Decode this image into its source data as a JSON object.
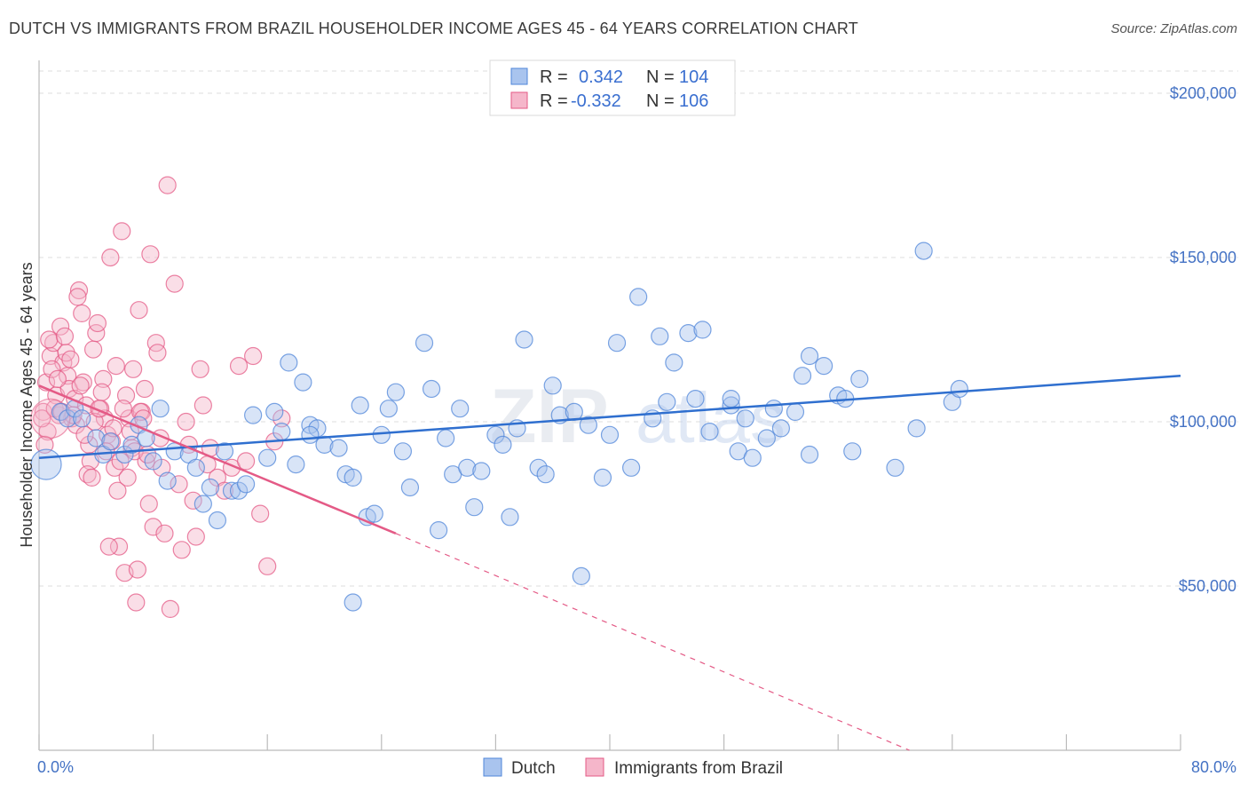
{
  "title": "DUTCH VS IMMIGRANTS FROM BRAZIL HOUSEHOLDER INCOME AGES 45 - 64 YEARS CORRELATION CHART",
  "source": "Source: ZipAtlas.com",
  "watermark": {
    "zip": "ZIP",
    "atlas": "atlas"
  },
  "legend": {
    "rows": [
      {
        "r_label": "R =",
        "r_value": "0.342",
        "n_label": "N =",
        "n_value": "104",
        "color": "#a9c4ee"
      },
      {
        "r_label": "R =",
        "r_value": "-0.332",
        "n_label": "N =",
        "n_value": "106",
        "color": "#f5b6ca"
      }
    ]
  },
  "bottom_legend": [
    "Dutch",
    "Immigrants from Brazil"
  ],
  "chart_data": {
    "type": "scatter",
    "title": "DUTCH VS IMMIGRANTS FROM BRAZIL HOUSEHOLDER INCOME AGES 45 - 64 YEARS CORRELATION CHART",
    "xlabel": "",
    "ylabel": "Householder Income Ages 45 - 64 years",
    "xlim": [
      0,
      80
    ],
    "ylim": [
      0,
      210000
    ],
    "x_tick_labels": [
      "0.0%",
      "80.0%"
    ],
    "y_ticks": [
      50000,
      100000,
      150000,
      200000
    ],
    "y_tick_labels": [
      "$50,000",
      "$100,000",
      "$150,000",
      "$200,000"
    ],
    "grid": true,
    "series": [
      {
        "name": "Dutch",
        "color": "#4f86d9",
        "fill": "#a9c4ee",
        "trend": {
          "x": [
            0,
            80
          ],
          "y": [
            89000,
            114000
          ],
          "style": "solid"
        },
        "points": [
          [
            0.5,
            87000
          ],
          [
            1.5,
            103000
          ],
          [
            2.0,
            101000
          ],
          [
            2.5,
            104000
          ],
          [
            3.0,
            101000
          ],
          [
            4.0,
            95000
          ],
          [
            4.5,
            90000
          ],
          [
            5.0,
            94000
          ],
          [
            6.0,
            90000
          ],
          [
            6.5,
            93000
          ],
          [
            7.0,
            99000
          ],
          [
            7.5,
            95000
          ],
          [
            8.0,
            88000
          ],
          [
            8.5,
            104000
          ],
          [
            9.0,
            82000
          ],
          [
            9.5,
            91000
          ],
          [
            10.5,
            90000
          ],
          [
            11.0,
            86000
          ],
          [
            11.5,
            75000
          ],
          [
            12.0,
            80000
          ],
          [
            12.5,
            70000
          ],
          [
            13.0,
            91000
          ],
          [
            13.5,
            79000
          ],
          [
            14.0,
            79000
          ],
          [
            14.5,
            81000
          ],
          [
            15.0,
            102000
          ],
          [
            16.0,
            89000
          ],
          [
            16.5,
            103000
          ],
          [
            17.0,
            97000
          ],
          [
            17.5,
            118000
          ],
          [
            18.0,
            87000
          ],
          [
            18.5,
            112000
          ],
          [
            19.0,
            99000
          ],
          [
            19.5,
            98000
          ],
          [
            20.0,
            93000
          ],
          [
            21.0,
            92000
          ],
          [
            21.5,
            84000
          ],
          [
            22.0,
            83000
          ],
          [
            22.5,
            105000
          ],
          [
            23.0,
            71000
          ],
          [
            23.5,
            72000
          ],
          [
            24.0,
            96000
          ],
          [
            24.5,
            104000
          ],
          [
            25.0,
            109000
          ],
          [
            25.5,
            91000
          ],
          [
            26.0,
            80000
          ],
          [
            27.0,
            124000
          ],
          [
            27.5,
            110000
          ],
          [
            28.0,
            67000
          ],
          [
            28.5,
            95000
          ],
          [
            29.0,
            84000
          ],
          [
            29.5,
            104000
          ],
          [
            30.0,
            86000
          ],
          [
            30.5,
            74000
          ],
          [
            31.0,
            85000
          ],
          [
            32.0,
            96000
          ],
          [
            32.5,
            93000
          ],
          [
            33.0,
            71000
          ],
          [
            33.5,
            98000
          ],
          [
            34.0,
            125000
          ],
          [
            35.0,
            86000
          ],
          [
            35.5,
            84000
          ],
          [
            36.0,
            111000
          ],
          [
            36.5,
            102000
          ],
          [
            37.5,
            103000
          ],
          [
            38.5,
            99000
          ],
          [
            39.5,
            83000
          ],
          [
            40.0,
            96000
          ],
          [
            40.5,
            124000
          ],
          [
            41.5,
            86000
          ],
          [
            42.0,
            138000
          ],
          [
            43.0,
            101000
          ],
          [
            43.5,
            126000
          ],
          [
            44.0,
            106000
          ],
          [
            44.5,
            118000
          ],
          [
            45.5,
            127000
          ],
          [
            46.0,
            107000
          ],
          [
            46.5,
            128000
          ],
          [
            47.0,
            97000
          ],
          [
            48.5,
            105000
          ],
          [
            48.5,
            107000
          ],
          [
            49.0,
            91000
          ],
          [
            49.5,
            101000
          ],
          [
            50.0,
            89000
          ],
          [
            51.0,
            95000
          ],
          [
            51.5,
            104000
          ],
          [
            52.0,
            98000
          ],
          [
            53.0,
            103000
          ],
          [
            53.5,
            114000
          ],
          [
            54.0,
            90000
          ],
          [
            55.0,
            117000
          ],
          [
            56.0,
            108000
          ],
          [
            56.5,
            107000
          ],
          [
            57.0,
            91000
          ],
          [
            57.5,
            113000
          ],
          [
            60.0,
            86000
          ],
          [
            61.5,
            98000
          ],
          [
            62.0,
            152000
          ],
          [
            64.0,
            106000
          ],
          [
            64.5,
            110000
          ],
          [
            54.0,
            120000
          ],
          [
            22.0,
            45000
          ],
          [
            38.0,
            53000
          ],
          [
            19.0,
            96000
          ]
        ]
      },
      {
        "name": "Immigrants from Brazil",
        "color": "#e45a86",
        "fill": "#f5b6ca",
        "trend": {
          "x": [
            0,
            25
          ],
          "y": [
            111000,
            66000
          ],
          "style": "solid",
          "dash_to": [
            61,
            0
          ]
        },
        "points": [
          [
            0.3,
            103000
          ],
          [
            0.5,
            112000
          ],
          [
            0.6,
            97000
          ],
          [
            0.8,
            120000
          ],
          [
            1.0,
            124000
          ],
          [
            1.2,
            108000
          ],
          [
            1.4,
            102000
          ],
          [
            1.5,
            129000
          ],
          [
            1.7,
            118000
          ],
          [
            1.9,
            121000
          ],
          [
            2.0,
            114000
          ],
          [
            2.1,
            110000
          ],
          [
            2.3,
            101000
          ],
          [
            2.5,
            107000
          ],
          [
            2.6,
            99000
          ],
          [
            2.8,
            140000
          ],
          [
            3.0,
            133000
          ],
          [
            3.1,
            112000
          ],
          [
            3.3,
            105000
          ],
          [
            3.5,
            93000
          ],
          [
            3.6,
            88000
          ],
          [
            3.8,
            122000
          ],
          [
            4.0,
            127000
          ],
          [
            4.1,
            130000
          ],
          [
            4.3,
            104000
          ],
          [
            4.5,
            113000
          ],
          [
            4.6,
            101000
          ],
          [
            4.8,
            96000
          ],
          [
            5.0,
            150000
          ],
          [
            5.1,
            94000
          ],
          [
            5.3,
            86000
          ],
          [
            5.5,
            79000
          ],
          [
            5.6,
            62000
          ],
          [
            5.8,
            158000
          ],
          [
            6.0,
            54000
          ],
          [
            6.1,
            108000
          ],
          [
            6.3,
            101000
          ],
          [
            6.5,
            92000
          ],
          [
            6.6,
            116000
          ],
          [
            6.8,
            45000
          ],
          [
            7.0,
            134000
          ],
          [
            7.2,
            103000
          ],
          [
            7.4,
            110000
          ],
          [
            7.5,
            88000
          ],
          [
            7.7,
            75000
          ],
          [
            7.8,
            151000
          ],
          [
            8.0,
            68000
          ],
          [
            8.2,
            124000
          ],
          [
            8.3,
            121000
          ],
          [
            8.5,
            95000
          ],
          [
            8.6,
            86000
          ],
          [
            8.8,
            66000
          ],
          [
            9.0,
            172000
          ],
          [
            9.2,
            43000
          ],
          [
            9.5,
            142000
          ],
          [
            9.8,
            81000
          ],
          [
            10.0,
            61000
          ],
          [
            10.3,
            100000
          ],
          [
            10.5,
            93000
          ],
          [
            10.8,
            76000
          ],
          [
            11.0,
            65000
          ],
          [
            11.3,
            116000
          ],
          [
            11.5,
            105000
          ],
          [
            11.8,
            87000
          ],
          [
            12.0,
            92000
          ],
          [
            12.5,
            83000
          ],
          [
            13.0,
            79000
          ],
          [
            13.5,
            86000
          ],
          [
            14.0,
            117000
          ],
          [
            14.5,
            88000
          ],
          [
            15.0,
            120000
          ],
          [
            15.5,
            72000
          ],
          [
            16.0,
            56000
          ],
          [
            16.5,
            94000
          ],
          [
            17.0,
            101000
          ],
          [
            0.2,
            101000
          ],
          [
            0.4,
            93000
          ],
          [
            0.7,
            125000
          ],
          [
            0.9,
            116000
          ],
          [
            1.1,
            104000
          ],
          [
            1.3,
            113000
          ],
          [
            1.6,
            103000
          ],
          [
            1.8,
            126000
          ],
          [
            2.2,
            119000
          ],
          [
            2.4,
            102000
          ],
          [
            2.7,
            138000
          ],
          [
            2.9,
            111000
          ],
          [
            3.2,
            96000
          ],
          [
            3.4,
            84000
          ],
          [
            3.7,
            83000
          ],
          [
            3.9,
            100000
          ],
          [
            4.2,
            104000
          ],
          [
            4.4,
            109000
          ],
          [
            4.7,
            91000
          ],
          [
            4.9,
            62000
          ],
          [
            5.2,
            98000
          ],
          [
            5.4,
            117000
          ],
          [
            5.7,
            88000
          ],
          [
            5.9,
            104000
          ],
          [
            6.2,
            83000
          ],
          [
            6.4,
            97000
          ],
          [
            6.7,
            91000
          ],
          [
            6.9,
            55000
          ],
          [
            7.1,
            103000
          ],
          [
            7.3,
            101000
          ],
          [
            7.6,
            90000
          ]
        ]
      }
    ]
  }
}
